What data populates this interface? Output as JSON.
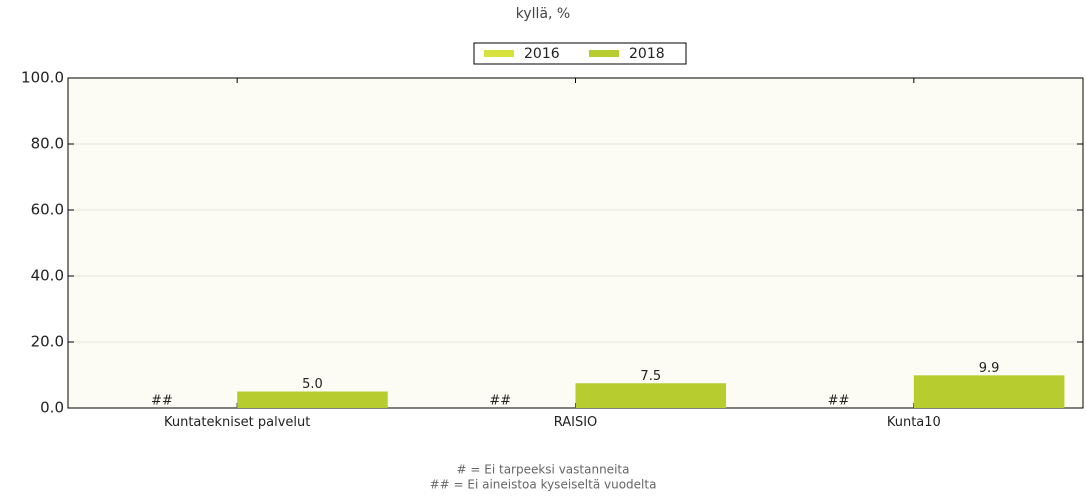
{
  "chart_data": {
    "type": "bar",
    "title": "kyllä, %",
    "categories": [
      "Kuntatekniset palvelut",
      "RAISIO",
      "Kunta10"
    ],
    "series": [
      {
        "name": "2016",
        "color": "#d7e23c",
        "values": [
          null,
          null,
          null
        ],
        "value_labels": [
          "##",
          "##",
          "##"
        ]
      },
      {
        "name": "2018",
        "color": "#b6cc2f",
        "values": [
          5.0,
          7.5,
          9.9
        ],
        "value_labels": [
          "5.0",
          "7.5",
          "9.9"
        ]
      }
    ],
    "ylim": [
      0,
      100
    ],
    "yticks": [
      {
        "value": 0,
        "label": "0.0"
      },
      {
        "value": 20,
        "label": "20.0"
      },
      {
        "value": 40,
        "label": "40.0"
      },
      {
        "value": 60,
        "label": "60.0"
      },
      {
        "value": 80,
        "label": "80.0"
      },
      {
        "value": 100,
        "label": "100.0"
      }
    ],
    "grid": true,
    "legend": "top",
    "notes": [
      "# = Ei tarpeeksi vastanneita",
      "## = Ei aineistoa kyseiseltä vuodelta"
    ]
  }
}
